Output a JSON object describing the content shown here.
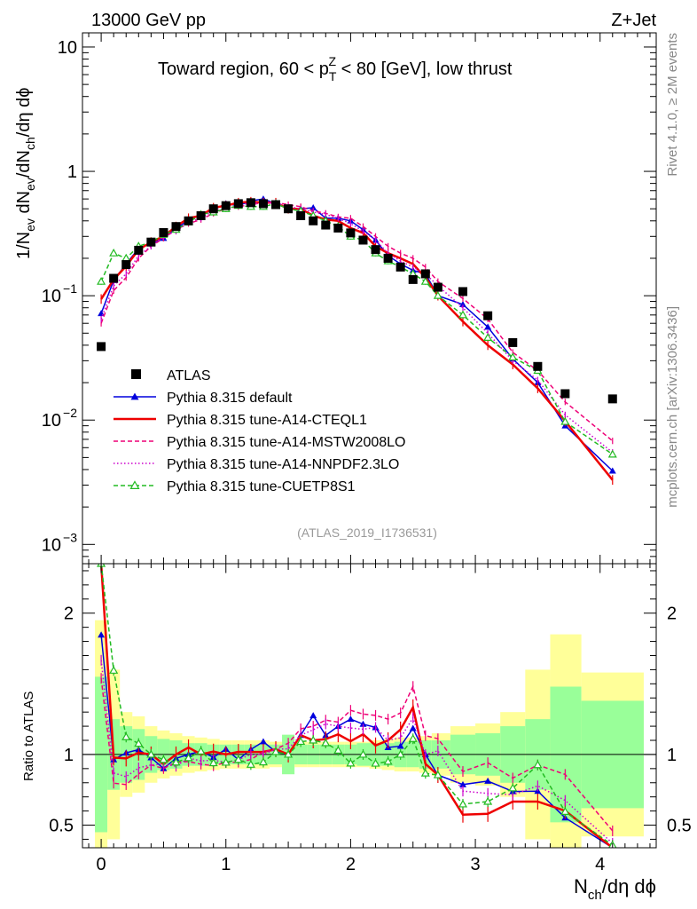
{
  "header": {
    "left": "13000 GeV pp",
    "right": "Z+Jet"
  },
  "side": {
    "rivet": "Rivet 4.1.0, ≥ 2M events",
    "mcplots": "mcplots.cern.ch [arXiv:1306.3436]"
  },
  "chart_data": {
    "type": "scatter",
    "title": "Toward region, 60 < p_T^Z < 80 [GeV], low thrust",
    "title_parts": {
      "prefix": "Toward region, 60 < p",
      "sub": "T",
      "sup": "Z",
      "suffix": " < 80 [GeV], low thrust"
    },
    "analysis_id": "(ATLAS_2019_I1736531)",
    "xlabel": "N_ch/dη dϕ",
    "xlabel_parts": {
      "base": "N",
      "sub": "ch",
      "rest": "/dη dϕ"
    },
    "ylabel": "1/N_ev dN_ev/dN_ch/dη dϕ",
    "ylabel_parts": [
      {
        "t": "1/N",
        "s": "n"
      },
      {
        "t": "ev",
        "s": "sub"
      },
      {
        "t": " dN",
        "s": "n"
      },
      {
        "t": "ev",
        "s": "sub"
      },
      {
        "t": "/dN",
        "s": "n"
      },
      {
        "t": "ch",
        "s": "sub"
      },
      {
        "t": "/dη dϕ",
        "s": "n"
      }
    ],
    "ratio_ylabel": "Ratio to ATLAS",
    "xlim": [
      -0.15,
      4.45
    ],
    "ylim": [
      0.0007,
      13
    ],
    "yscale": "log",
    "ratio_ylim": [
      0.34,
      2.35
    ],
    "xticks": [
      "0",
      "1",
      "2",
      "3",
      "4"
    ],
    "yticks": [
      {
        "v": 10,
        "label": "10"
      },
      {
        "v": 1,
        "label": "1"
      },
      {
        "v": 0.1,
        "base": "10",
        "exp": "−1"
      },
      {
        "v": 0.01,
        "base": "10",
        "exp": "−2"
      },
      {
        "v": 0.001,
        "base": "10",
        "exp": "−3"
      }
    ],
    "ratio_yticks": [
      "0.5",
      "1",
      "2"
    ],
    "legend_position": "lower-left",
    "x": [
      0.0,
      0.1,
      0.2,
      0.3,
      0.4,
      0.5,
      0.6,
      0.7,
      0.8,
      0.9,
      1.0,
      1.1,
      1.2,
      1.3,
      1.4,
      1.5,
      1.6,
      1.7,
      1.8,
      1.9,
      2.0,
      2.1,
      2.2,
      2.3,
      2.4,
      2.5,
      2.6,
      2.7,
      2.9,
      3.1,
      3.3,
      3.5,
      3.72,
      4.1
    ],
    "bin_edges": [
      -0.05,
      0.05,
      0.15,
      0.25,
      0.35,
      0.45,
      0.55,
      0.65,
      0.75,
      0.85,
      0.95,
      1.05,
      1.15,
      1.25,
      1.35,
      1.45,
      1.55,
      1.65,
      1.75,
      1.85,
      1.95,
      2.05,
      2.15,
      2.25,
      2.35,
      2.45,
      2.55,
      2.65,
      2.8,
      3.0,
      3.2,
      3.4,
      3.6,
      3.85,
      4.35
    ],
    "band_inner": [
      0.55,
      0.25,
      0.2,
      0.18,
      0.13,
      0.11,
      0.1,
      0.08,
      0.08,
      0.07,
      0.07,
      0.07,
      0.07,
      0.07,
      0.07,
      0.14,
      0.07,
      0.07,
      0.07,
      0.07,
      0.07,
      0.08,
      0.08,
      0.08,
      0.09,
      0.09,
      0.1,
      0.1,
      0.14,
      0.15,
      0.2,
      0.25,
      0.48,
      0.38
    ],
    "band_outer": [
      0.95,
      0.6,
      0.3,
      0.27,
      0.2,
      0.17,
      0.15,
      0.13,
      0.12,
      0.11,
      0.1,
      0.1,
      0.1,
      0.1,
      0.09,
      0.1,
      0.09,
      0.09,
      0.09,
      0.09,
      0.09,
      0.09,
      0.1,
      0.11,
      0.12,
      0.12,
      0.13,
      0.15,
      0.2,
      0.22,
      0.3,
      0.6,
      0.85,
      0.58
    ],
    "series": [
      {
        "name": "ATLAS",
        "style": "data",
        "color": "#000000",
        "values": [
          0.039,
          0.138,
          0.178,
          0.232,
          0.27,
          0.322,
          0.36,
          0.4,
          0.44,
          0.5,
          0.53,
          0.55,
          0.56,
          0.55,
          0.54,
          0.5,
          0.44,
          0.4,
          0.37,
          0.35,
          0.32,
          0.28,
          0.235,
          0.2,
          0.17,
          0.135,
          0.15,
          0.117,
          0.108,
          0.069,
          0.042,
          0.027,
          0.0163,
          0.0148
        ]
      },
      {
        "name": "Pythia 8.315 default",
        "style": "solid-triangle",
        "color": "#0000dd",
        "values": [
          0.072,
          0.133,
          0.18,
          0.24,
          0.264,
          0.29,
          0.35,
          0.4,
          0.45,
          0.49,
          0.55,
          0.53,
          0.58,
          0.6,
          0.55,
          0.5,
          0.5,
          0.51,
          0.42,
          0.42,
          0.4,
          0.34,
          0.28,
          0.21,
          0.18,
          0.16,
          0.15,
          0.1,
          0.085,
          0.056,
          0.031,
          0.02,
          0.009,
          0.0039
        ]
      },
      {
        "name": "Pythia 8.315 tune-A14-CTEQL1",
        "style": "thick",
        "color": "#ee0000",
        "values": [
          0.094,
          0.135,
          0.173,
          0.235,
          0.27,
          0.3,
          0.36,
          0.42,
          0.44,
          0.51,
          0.53,
          0.56,
          0.57,
          0.56,
          0.56,
          0.5,
          0.5,
          0.44,
          0.41,
          0.4,
          0.35,
          0.32,
          0.25,
          0.22,
          0.2,
          0.18,
          0.14,
          0.1,
          0.062,
          0.04,
          0.028,
          0.018,
          0.0098,
          0.0033
        ]
      },
      {
        "name": "Pythia 8.315 tune-A14-MSTW2008LO",
        "style": "dashed",
        "color": "#ee0077",
        "values": [
          0.06,
          0.11,
          0.14,
          0.2,
          0.25,
          0.29,
          0.34,
          0.38,
          0.41,
          0.46,
          0.5,
          0.52,
          0.54,
          0.56,
          0.56,
          0.54,
          0.52,
          0.48,
          0.46,
          0.43,
          0.42,
          0.36,
          0.3,
          0.25,
          0.22,
          0.2,
          0.17,
          0.13,
          0.095,
          0.065,
          0.035,
          0.025,
          0.014,
          0.0068
        ]
      },
      {
        "name": "Pythia 8.315 tune-A14-NNPDF2.3LO",
        "style": "dotted",
        "color": "#cc00cc",
        "values": [
          0.065,
          0.12,
          0.15,
          0.21,
          0.25,
          0.3,
          0.33,
          0.39,
          0.42,
          0.48,
          0.5,
          0.53,
          0.56,
          0.55,
          0.56,
          0.52,
          0.5,
          0.47,
          0.45,
          0.42,
          0.38,
          0.33,
          0.28,
          0.22,
          0.19,
          0.17,
          0.15,
          0.12,
          0.08,
          0.05,
          0.03,
          0.021,
          0.011,
          0.0055
        ]
      },
      {
        "name": "Pythia 8.315 tune-CUETP8S1",
        "style": "open-triangle",
        "color": "#22bb22",
        "values": [
          0.13,
          0.22,
          0.2,
          0.25,
          0.27,
          0.31,
          0.34,
          0.39,
          0.45,
          0.47,
          0.5,
          0.53,
          0.52,
          0.52,
          0.55,
          0.5,
          0.48,
          0.44,
          0.4,
          0.36,
          0.3,
          0.28,
          0.22,
          0.19,
          0.17,
          0.15,
          0.13,
          0.1,
          0.07,
          0.046,
          0.032,
          0.025,
          0.0097,
          0.0053
        ]
      }
    ]
  }
}
